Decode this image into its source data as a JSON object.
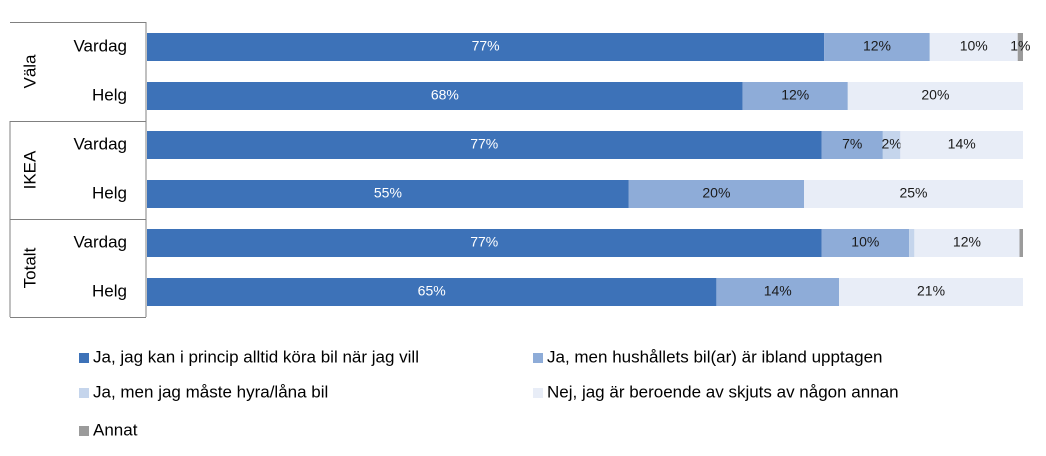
{
  "chart_data": {
    "type": "bar",
    "orientation": "horizontal",
    "stacked": "percent",
    "groups": [
      {
        "name": "Väla",
        "rows": [
          "Vardag",
          "Helg"
        ]
      },
      {
        "name": "IKEA",
        "rows": [
          "Vardag",
          "Helg"
        ]
      },
      {
        "name": "Totalt",
        "rows": [
          "Vardag",
          "Helg"
        ]
      }
    ],
    "categories": [
      "Väla – Vardag",
      "Väla – Helg",
      "IKEA – Vardag",
      "IKEA – Helg",
      "Totalt – Vardag",
      "Totalt – Helg"
    ],
    "series": [
      {
        "name": "Ja, jag kan i princip alltid köra bil när jag vill",
        "color": "#3d72b8",
        "label_color": "#ffffff",
        "values": [
          77,
          68,
          77,
          55,
          77,
          65
        ],
        "labels": [
          "77%",
          "68%",
          "77%",
          "55%",
          "77%",
          "65%"
        ]
      },
      {
        "name": "Ja, men hushållets bil(ar) är ibland upptagen",
        "color": "#8eacd8",
        "label_color": "#1a1a1a",
        "values": [
          12,
          12,
          7,
          20,
          10,
          14
        ],
        "labels": [
          "12%",
          "12%",
          "7%",
          "20%",
          "10%",
          "14%"
        ]
      },
      {
        "name": "Ja, men jag måste hyra/låna bil",
        "color": "#c5d5ec",
        "label_color": "#1a1a1a",
        "values": [
          0,
          0,
          2,
          0,
          0.6,
          0
        ],
        "labels": [
          "",
          "",
          "2%",
          "",
          "",
          ""
        ]
      },
      {
        "name": "Nej, jag är beroende av skjuts av någon annan",
        "color": "#e8edf7",
        "label_color": "#1a1a1a",
        "values": [
          10,
          20,
          14,
          25,
          12,
          21
        ],
        "labels": [
          "10%",
          "20%",
          "14%",
          "25%",
          "12%",
          "21%"
        ]
      },
      {
        "name": "Annat",
        "color": "#9b9b9b",
        "label_color": "#1a1a1a",
        "values": [
          0.6,
          0,
          0,
          0,
          0.4,
          0
        ],
        "labels": [
          "1%",
          "",
          "",
          "",
          "",
          ""
        ]
      }
    ],
    "xlim": [
      0,
      100
    ],
    "grid": false,
    "legend_position": "bottom"
  }
}
